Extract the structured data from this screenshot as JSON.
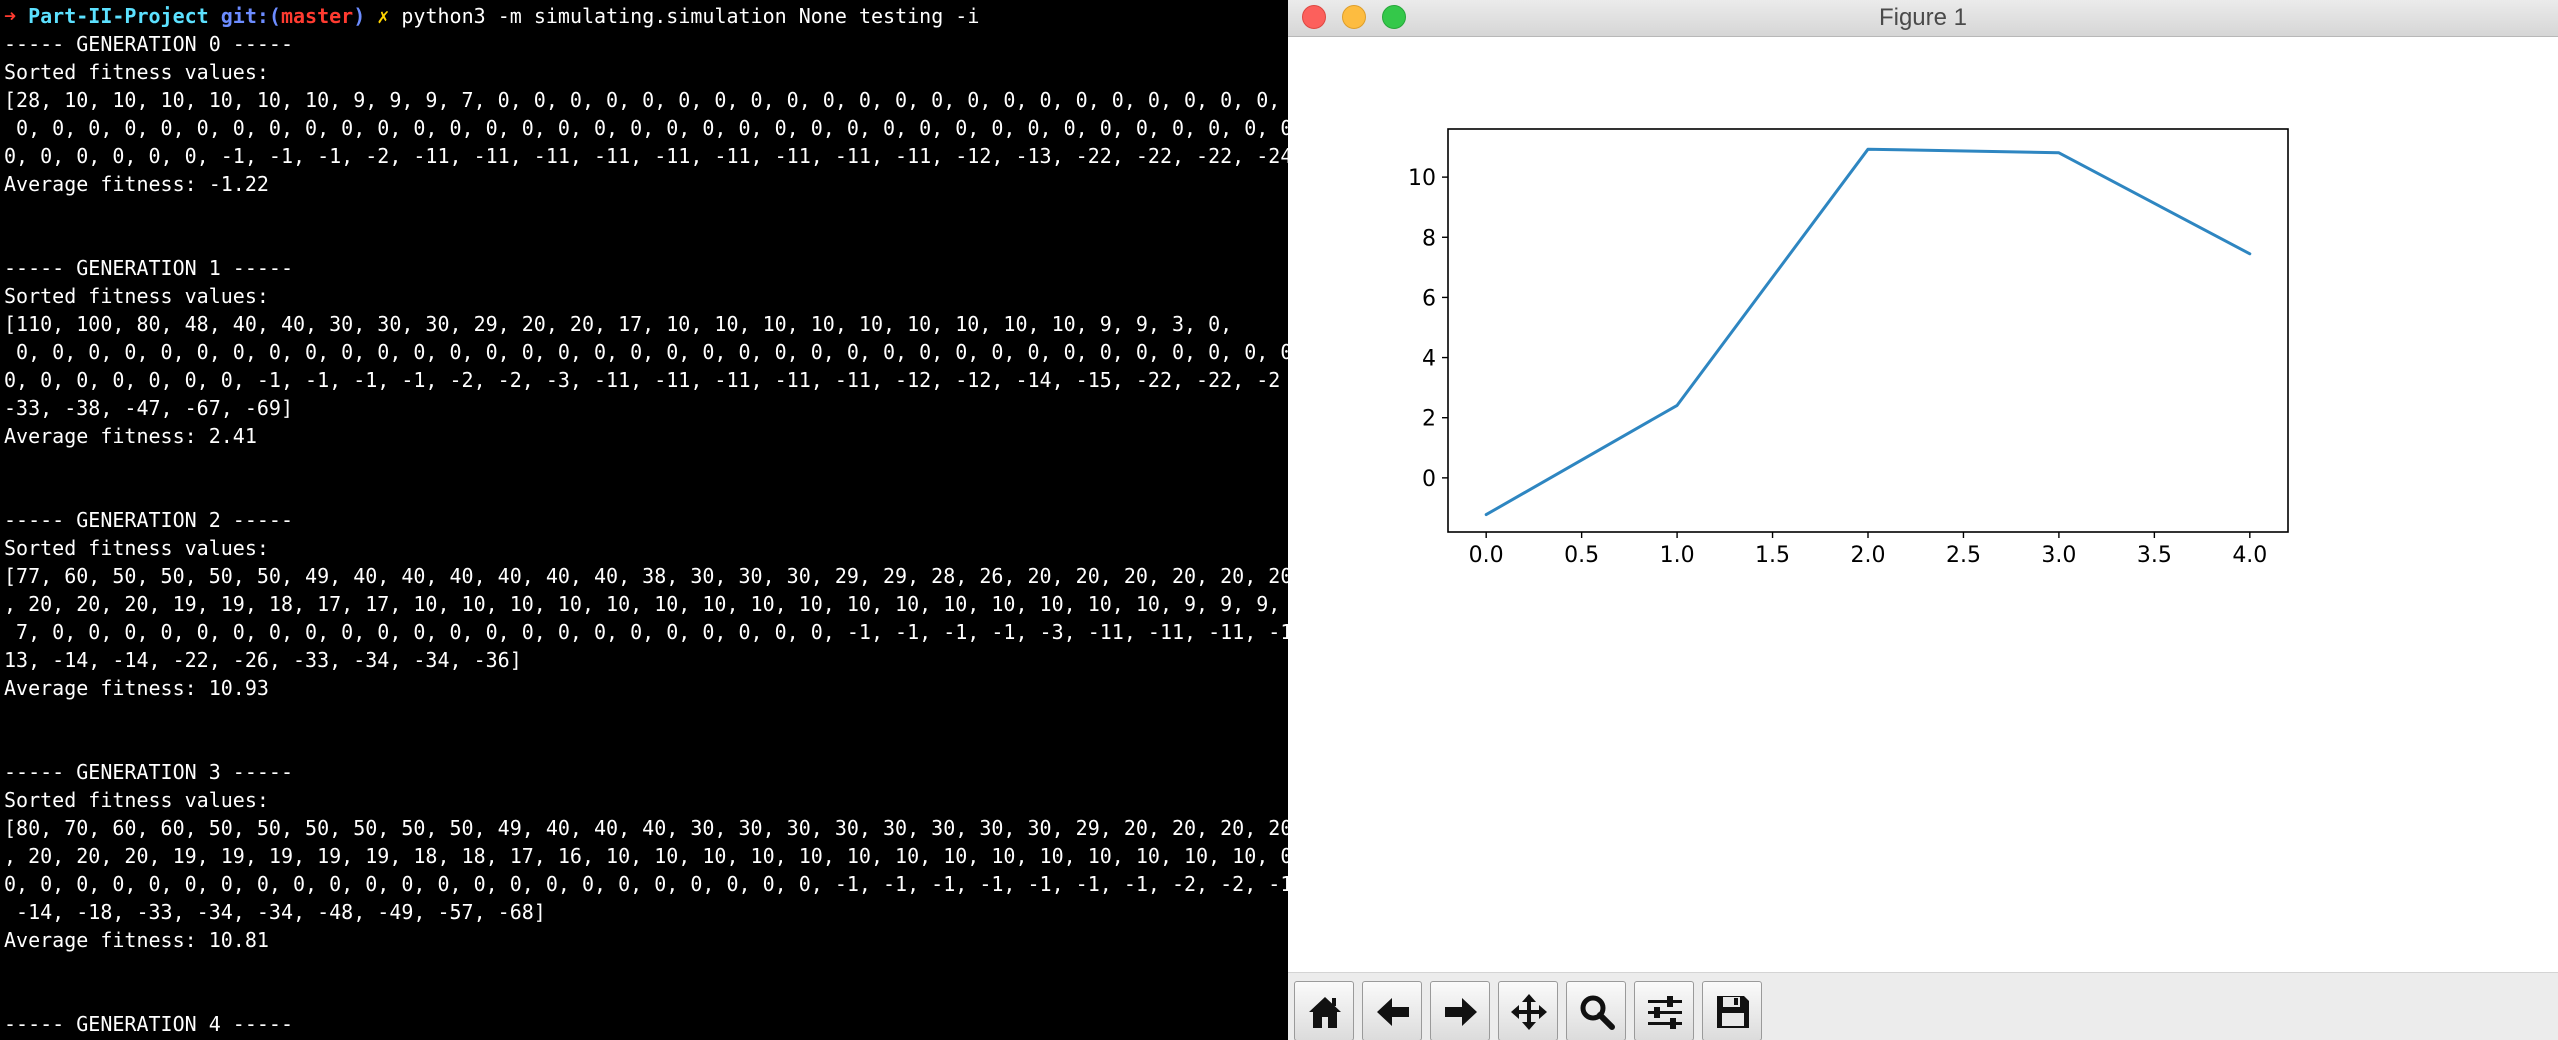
{
  "terminal": {
    "prompt": {
      "arrow": "➜ ",
      "directory": "Part-II-Project",
      "git_prefix": " git:(",
      "branch": "master",
      "git_suffix": ")",
      "dirty_marker": " ✗ ",
      "command": "python3 -m simulating.simulation None testing -i"
    },
    "lines": [
      "----- GENERATION 0 -----",
      "Sorted fitness values:",
      "[28, 10, 10, 10, 10, 10, 10, 9, 9, 9, 7, 0, 0, 0, 0, 0, 0, 0, 0, 0, 0, 0, 0, 0, 0, 0, 0, 0, 0, 0, 0, 0, 0, 0,",
      " 0, 0, 0, 0, 0, 0, 0, 0, 0, 0, 0, 0, 0, 0, 0, 0, 0, 0, 0, 0, 0, 0, 0, 0, 0, 0, 0, 0, 0, 0, 0, 0, 0, 0, 0, 0, 0, 0, 0,",
      "0, 0, 0, 0, 0, 0, -1, -1, -1, -2, -11, -11, -11, -11, -11, -11, -11, -11, -11, -12, -13, -22, -22, -22, -24",
      "Average fitness: -1.22",
      "",
      "",
      "----- GENERATION 1 -----",
      "Sorted fitness values:",
      "[110, 100, 80, 48, 40, 40, 30, 30, 30, 29, 20, 20, 17, 10, 10, 10, 10, 10, 10, 10, 10, 10, 9, 9, 3, 0,",
      " 0, 0, 0, 0, 0, 0, 0, 0, 0, 0, 0, 0, 0, 0, 0, 0, 0, 0, 0, 0, 0, 0, 0, 0, 0, 0, 0, 0, 0, 0, 0, 0, 0, 0, 0, 0, 0, 0, 0,",
      "0, 0, 0, 0, 0, 0, 0, -1, -1, -1, -1, -2, -2, -3, -11, -11, -11, -11, -11, -12, -12, -14, -15, -22, -22, -2",
      "-33, -38, -47, -67, -69]",
      "Average fitness: 2.41",
      "",
      "",
      "----- GENERATION 2 -----",
      "Sorted fitness values:",
      "[77, 60, 50, 50, 50, 50, 49, 40, 40, 40, 40, 40, 40, 38, 30, 30, 30, 29, 29, 28, 26, 20, 20, 20, 20, 20, 20",
      ", 20, 20, 20, 19, 19, 18, 17, 17, 10, 10, 10, 10, 10, 10, 10, 10, 10, 10, 10, 10, 10, 10, 10, 10, 9, 9, 9,",
      " 7, 0, 0, 0, 0, 0, 0, 0, 0, 0, 0, 0, 0, 0, 0, 0, 0, 0, 0, 0, 0, 0, 0, -1, -1, -1, -1, -3, -11, -11, -11, -11, -11",
      "13, -14, -14, -22, -26, -33, -34, -34, -36]",
      "Average fitness: 10.93",
      "",
      "",
      "----- GENERATION 3 -----",
      "Sorted fitness values:",
      "[80, 70, 60, 60, 50, 50, 50, 50, 50, 50, 49, 40, 40, 40, 30, 30, 30, 30, 30, 30, 30, 30, 29, 20, 20, 20, 20",
      ", 20, 20, 20, 19, 19, 19, 19, 19, 18, 18, 17, 16, 10, 10, 10, 10, 10, 10, 10, 10, 10, 10, 10, 10, 10, 10, 0",
      "0, 0, 0, 0, 0, 0, 0, 0, 0, 0, 0, 0, 0, 0, 0, 0, 0, 0, 0, 0, 0, 0, 0, -1, -1, -1, -1, -1, -1, -1, -2, -2, -11, -11, -",
      " -14, -18, -33, -34, -34, -48, -49, -57, -68]",
      "Average fitness: 10.81",
      "",
      "",
      "----- GENERATION 4 -----"
    ]
  },
  "figure_window": {
    "title": "Figure 1",
    "toolbar": {
      "buttons": [
        {
          "name": "home-button",
          "icon": "home-icon"
        },
        {
          "name": "back-button",
          "icon": "arrow-left-icon"
        },
        {
          "name": "forward-button",
          "icon": "arrow-right-icon"
        },
        {
          "name": "pan-button",
          "icon": "move-icon"
        },
        {
          "name": "zoom-button",
          "icon": "magnifier-icon"
        },
        {
          "name": "configure-subplots-button",
          "icon": "sliders-icon"
        },
        {
          "name": "save-button",
          "icon": "floppy-disk-icon"
        }
      ]
    }
  },
  "chart_data": {
    "type": "line",
    "title": "",
    "xlabel": "",
    "ylabel": "",
    "x": [
      0,
      1,
      2,
      3,
      4
    ],
    "series": [
      {
        "values": [
          -1.22,
          2.41,
          10.93,
          10.81,
          7.45
        ],
        "color": "#2e86c1"
      }
    ],
    "xlim": [
      -0.2,
      4.2
    ],
    "ylim": [
      -1.8,
      11.6
    ],
    "xticks": [
      0.0,
      0.5,
      1.0,
      1.5,
      2.0,
      2.5,
      3.0,
      3.5,
      4.0
    ],
    "xtick_labels": [
      "0.0",
      "0.5",
      "1.0",
      "1.5",
      "2.0",
      "2.5",
      "3.0",
      "3.5",
      "4.0"
    ],
    "yticks": [
      0,
      2,
      4,
      6,
      8,
      10
    ],
    "ytick_labels": [
      "0",
      "2",
      "4",
      "6",
      "8",
      "10"
    ],
    "grid": false,
    "legend": "none"
  }
}
